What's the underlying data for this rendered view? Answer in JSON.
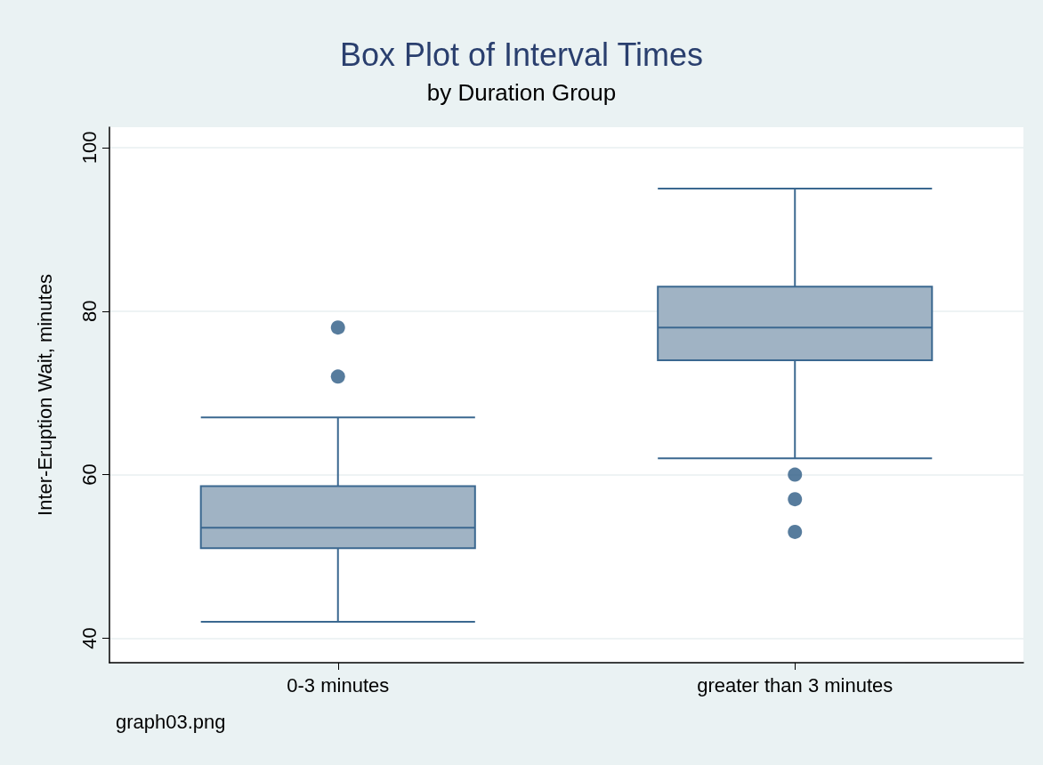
{
  "chart_data": {
    "type": "box",
    "title": "Box Plot of Interval Times",
    "subtitle": "by Duration Group",
    "ylabel": "Inter-Eruption Wait, minutes",
    "categories": [
      "0-3 minutes",
      "greater than 3 minutes"
    ],
    "boxes": [
      {
        "low": 42,
        "q1": 51,
        "median": 53.5,
        "q3": 58.6,
        "high": 67,
        "outliers": [
          78,
          72
        ]
      },
      {
        "low": 62,
        "q1": 74,
        "median": 78,
        "q3": 83,
        "high": 95,
        "outliers": [
          60,
          57,
          53
        ]
      }
    ],
    "color": "#a0b3c4",
    "ylim": [
      37,
      102.5
    ],
    "yticks": [
      40,
      60,
      80,
      100
    ],
    "grid": "y",
    "annotations": [
      "graph03.png"
    ]
  }
}
